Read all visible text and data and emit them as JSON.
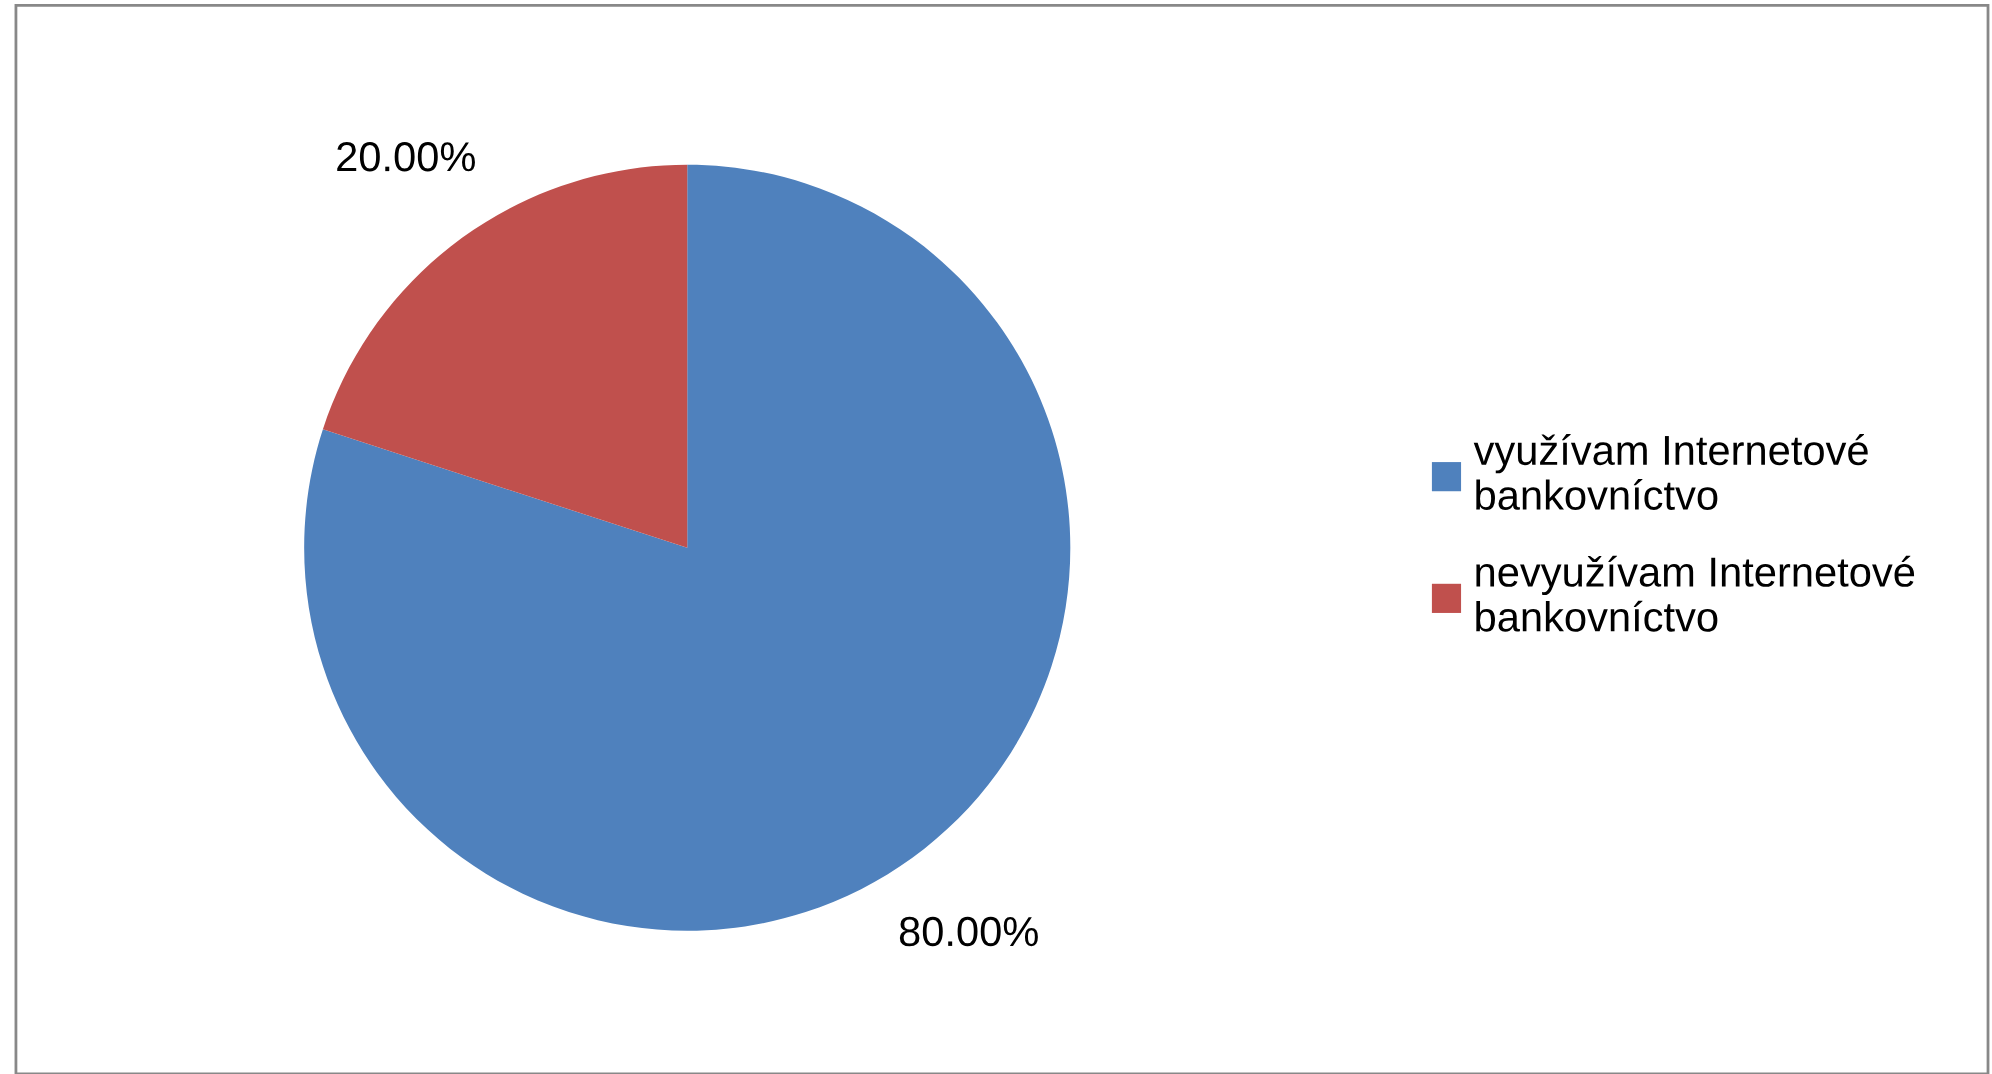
{
  "chart_data": {
    "type": "pie",
    "categories": [
      "využívam Internetové bankovníctvo",
      "nevyužívam Internetové bankovníctvo"
    ],
    "values": [
      80,
      20
    ],
    "colors": [
      "#4f81bd",
      "#c0504d"
    ],
    "value_labels": [
      "80.00%",
      "20.00%"
    ],
    "legend": "right"
  }
}
